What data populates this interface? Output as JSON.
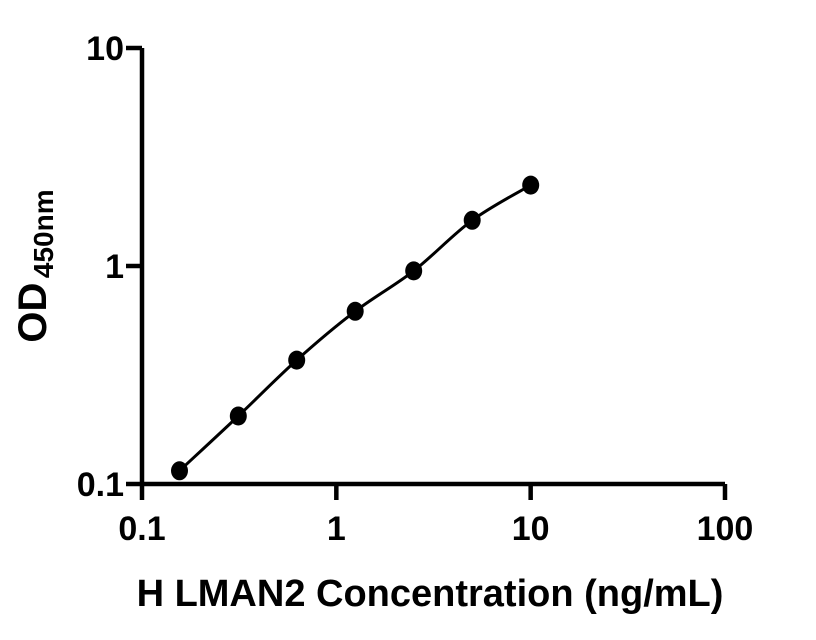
{
  "figure": {
    "background_color": "#ffffff",
    "ink_color": "#000000"
  },
  "chart_data": {
    "type": "scatter",
    "subtype": "line-with-markers",
    "title": "",
    "xlabel": "H LMAN2 Concentration (ng/mL)",
    "ylabel_base": "OD",
    "ylabel_sub": "450nm",
    "x_scale": "log10",
    "y_scale": "log10",
    "xlim": [
      0.1,
      100
    ],
    "ylim": [
      0.1,
      10
    ],
    "x_tick_values": [
      0.1,
      1,
      10,
      100
    ],
    "x_tick_labels": [
      "0.1",
      "1",
      "10",
      "100"
    ],
    "y_tick_values": [
      0.1,
      1,
      10
    ],
    "y_tick_labels": [
      "0.1",
      "1",
      "10"
    ],
    "grid": false,
    "legend": false,
    "marker": "filled-circle",
    "marker_color": "#000000",
    "line_color": "#000000",
    "points": [
      {
        "x": 0.156,
        "y": 0.115
      },
      {
        "x": 0.313,
        "y": 0.205
      },
      {
        "x": 0.625,
        "y": 0.37
      },
      {
        "x": 1.25,
        "y": 0.62
      },
      {
        "x": 2.5,
        "y": 0.95
      },
      {
        "x": 5,
        "y": 1.62
      },
      {
        "x": 10,
        "y": 2.35
      }
    ]
  }
}
